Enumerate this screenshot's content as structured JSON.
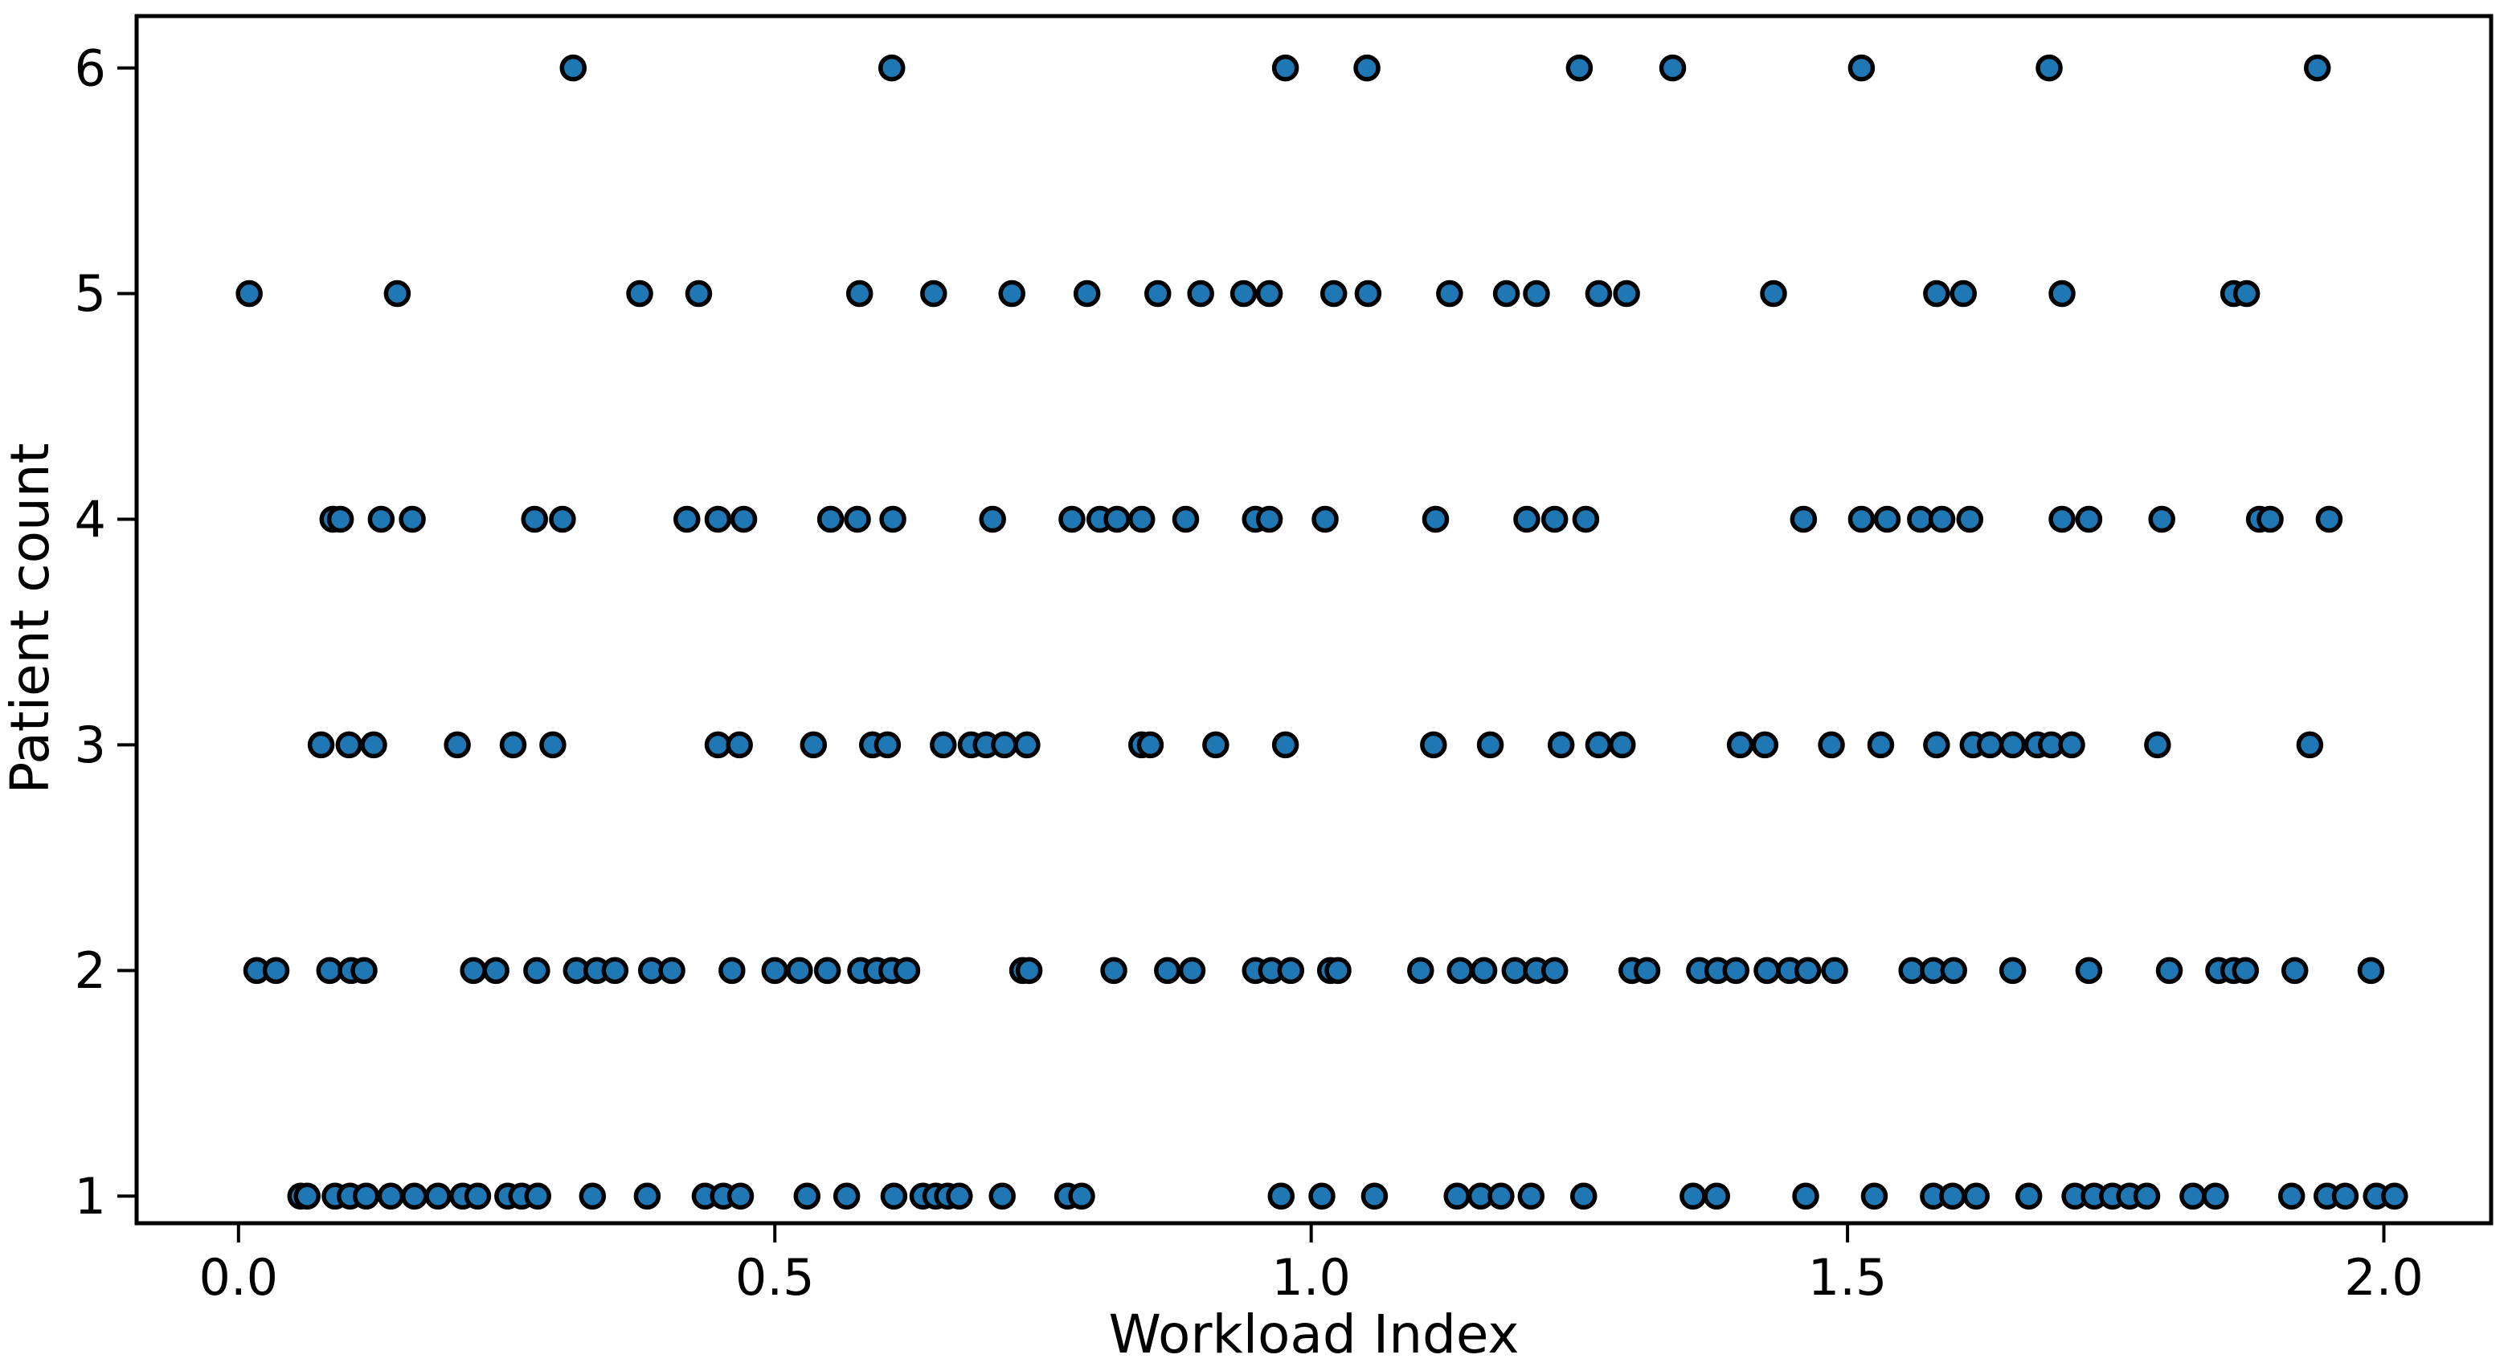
{
  "chart_data": {
    "type": "scatter",
    "title": "",
    "xlabel": "Workload Index",
    "ylabel": "Patient count",
    "x_ticks": [
      0.0,
      0.5,
      1.0,
      1.5,
      2.0
    ],
    "x_tick_labels": [
      "0.0",
      "0.5",
      "1.0",
      "1.5",
      "2.0"
    ],
    "y_ticks": [
      1,
      2,
      3,
      4,
      5,
      6
    ],
    "y_tick_labels": [
      "1",
      "2",
      "3",
      "4",
      "5",
      "6"
    ],
    "xlim": [
      -0.095,
      2.1
    ],
    "ylim": [
      0.88,
      6.23
    ],
    "grid": false,
    "legend": null,
    "marker": {
      "fill": "#1f77b4",
      "edge": "#000000",
      "radius": 14,
      "edge_width": 5.5
    },
    "axis_color": "#000000",
    "rows": [
      {
        "y": 1,
        "x": [
          0.058,
          0.064,
          0.09,
          0.104,
          0.119,
          0.142,
          0.164,
          0.186,
          0.209,
          0.223,
          0.251,
          0.264,
          0.279,
          0.33,
          0.381,
          0.435,
          0.452,
          0.468,
          0.53,
          0.567,
          0.611,
          0.638,
          0.65,
          0.661,
          0.672,
          0.712,
          0.773,
          0.786,
          0.972,
          1.01,
          1.059,
          1.136,
          1.158,
          1.177,
          1.205,
          1.254,
          1.356,
          1.378,
          1.461,
          1.525,
          1.58,
          1.598,
          1.62,
          1.669,
          1.712,
          1.73,
          1.747,
          1.763,
          1.779,
          1.822,
          1.843,
          1.914,
          1.947,
          1.964,
          1.993,
          2.01
        ]
      },
      {
        "y": 2,
        "x": [
          0.017,
          0.035,
          0.085,
          0.105,
          0.117,
          0.219,
          0.24,
          0.278,
          0.315,
          0.334,
          0.351,
          0.385,
          0.404,
          0.46,
          0.5,
          0.523,
          0.549,
          0.58,
          0.595,
          0.609,
          0.623,
          0.731,
          0.737,
          0.816,
          0.866,
          0.889,
          0.948,
          0.963,
          0.981,
          1.018,
          1.025,
          1.102,
          1.139,
          1.161,
          1.19,
          1.21,
          1.227,
          1.299,
          1.313,
          1.362,
          1.379,
          1.396,
          1.425,
          1.446,
          1.463,
          1.488,
          1.56,
          1.58,
          1.599,
          1.654,
          1.725,
          1.8,
          1.846,
          1.86,
          1.871,
          1.917,
          1.988
        ]
      },
      {
        "y": 3,
        "x": [
          0.077,
          0.103,
          0.126,
          0.204,
          0.256,
          0.293,
          0.447,
          0.467,
          0.536,
          0.591,
          0.605,
          0.657,
          0.683,
          0.697,
          0.714,
          0.735,
          0.842,
          0.85,
          0.911,
          0.976,
          1.114,
          1.167,
          1.233,
          1.268,
          1.29,
          1.4,
          1.423,
          1.485,
          1.531,
          1.583,
          1.617,
          1.633,
          1.654,
          1.677,
          1.69,
          1.709,
          1.789,
          1.931
        ]
      },
      {
        "y": 4,
        "x": [
          0.088,
          0.095,
          0.133,
          0.162,
          0.276,
          0.302,
          0.418,
          0.447,
          0.471,
          0.552,
          0.577,
          0.61,
          0.703,
          0.777,
          0.803,
          0.819,
          0.842,
          0.883,
          0.948,
          0.961,
          1.013,
          1.116,
          1.201,
          1.227,
          1.256,
          1.459,
          1.513,
          1.537,
          1.568,
          1.588,
          1.614,
          1.7,
          1.725,
          1.793,
          1.884,
          1.894,
          1.949
        ]
      },
      {
        "y": 5,
        "x": [
          0.01,
          0.148,
          0.374,
          0.429,
          0.579,
          0.648,
          0.721,
          0.791,
          0.857,
          0.897,
          0.937,
          0.961,
          1.021,
          1.053,
          1.129,
          1.182,
          1.21,
          1.268,
          1.294,
          1.431,
          1.583,
          1.608,
          1.7,
          1.86,
          1.872
        ]
      },
      {
        "y": 6,
        "x": [
          0.312,
          0.609,
          0.976,
          1.052,
          1.25,
          1.337,
          1.513,
          1.688,
          1.938
        ]
      }
    ]
  }
}
